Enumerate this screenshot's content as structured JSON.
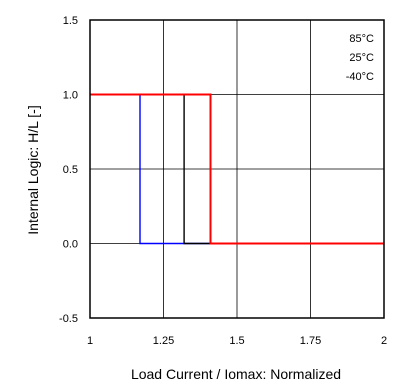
{
  "chart_data": {
    "type": "line",
    "xlabel": "Load Current / Iomax: Normalized",
    "ylabel": "Internal Logic: H/L [-]",
    "xlim": [
      1,
      2
    ],
    "ylim": [
      -0.5,
      1.5
    ],
    "x_ticks": [
      1,
      1.25,
      1.5,
      1.75,
      2
    ],
    "x_tick_labels": [
      "1",
      "1.25",
      "1.5",
      "1.75",
      "2"
    ],
    "y_ticks": [
      -0.5,
      0.0,
      0.5,
      1.0,
      1.5
    ],
    "y_tick_labels": [
      "-0.5",
      "0.0",
      "0.5",
      "1.0",
      "1.5"
    ],
    "grid": true,
    "legend_position": "top-right",
    "series": [
      {
        "name": "-40°C",
        "color": "#0000ff",
        "x": [
          1,
          1.17,
          1.17,
          2
        ],
        "y": [
          1,
          1,
          0,
          0
        ]
      },
      {
        "name": "25°C",
        "color": "#000000",
        "x": [
          1,
          1.32,
          1.32,
          2
        ],
        "y": [
          1,
          1,
          0,
          0
        ]
      },
      {
        "name": "85°C",
        "color": "#ff0000",
        "x": [
          1,
          1.41,
          1.41,
          2
        ],
        "y": [
          1,
          1,
          0,
          0
        ]
      }
    ],
    "legend_order": [
      "85°C",
      "25°C",
      "-40°C"
    ]
  }
}
